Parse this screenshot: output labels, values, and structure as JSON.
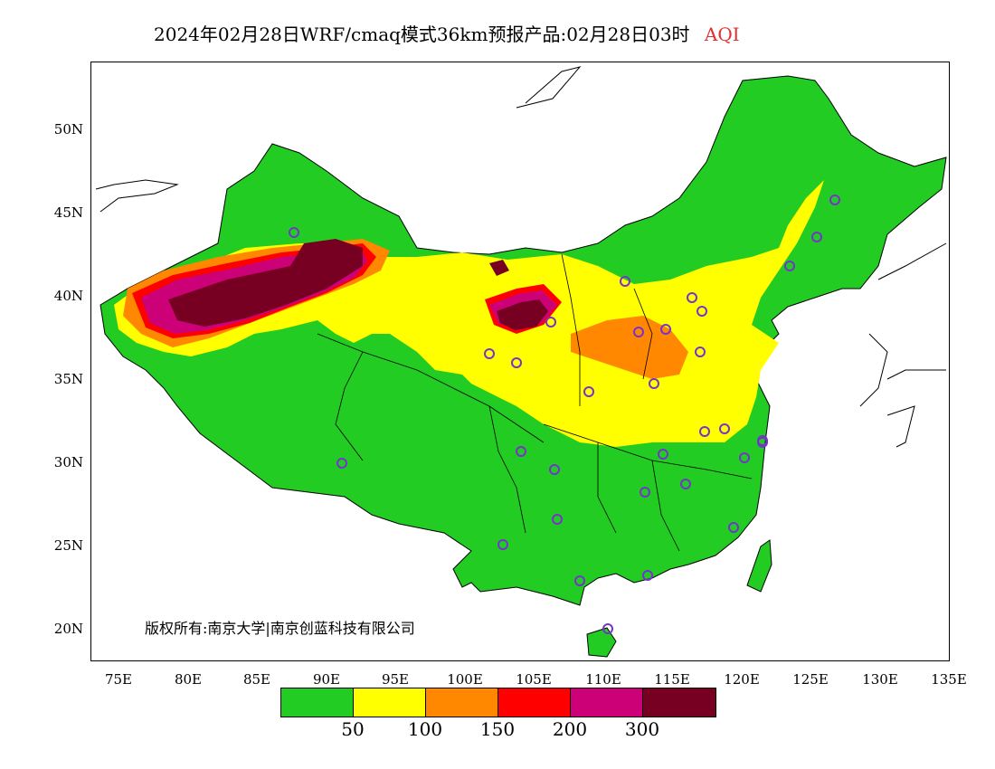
{
  "title": {
    "main": "2024年02月28日WRF/cmaq模式36km预报产品:02月28日03时",
    "variable": "AQI"
  },
  "axes": {
    "y_labels": [
      "50N",
      "45N",
      "40N",
      "35N",
      "30N",
      "25N",
      "20N"
    ],
    "x_labels": [
      "75E",
      "80E",
      "85E",
      "90E",
      "95E",
      "100E",
      "105E",
      "110E",
      "115E",
      "120E",
      "125E",
      "130E",
      "135E"
    ]
  },
  "copyright": "版权所有:南京大学|南京创蓝科技有限公司",
  "legend": {
    "colors": [
      "#22cc22",
      "#ffff00",
      "#ff8800",
      "#ff0000",
      "#cc0077",
      "#770022"
    ],
    "ticks": [
      "50",
      "100",
      "150",
      "200",
      "300"
    ]
  },
  "colors": {
    "good": "#22cc22",
    "moderate": "#ffff00",
    "usg": "#ff8800",
    "unhealthy": "#ff0000",
    "very_unhealthy": "#cc0077",
    "hazardous": "#770022",
    "station_marker": "#7733cc"
  }
}
